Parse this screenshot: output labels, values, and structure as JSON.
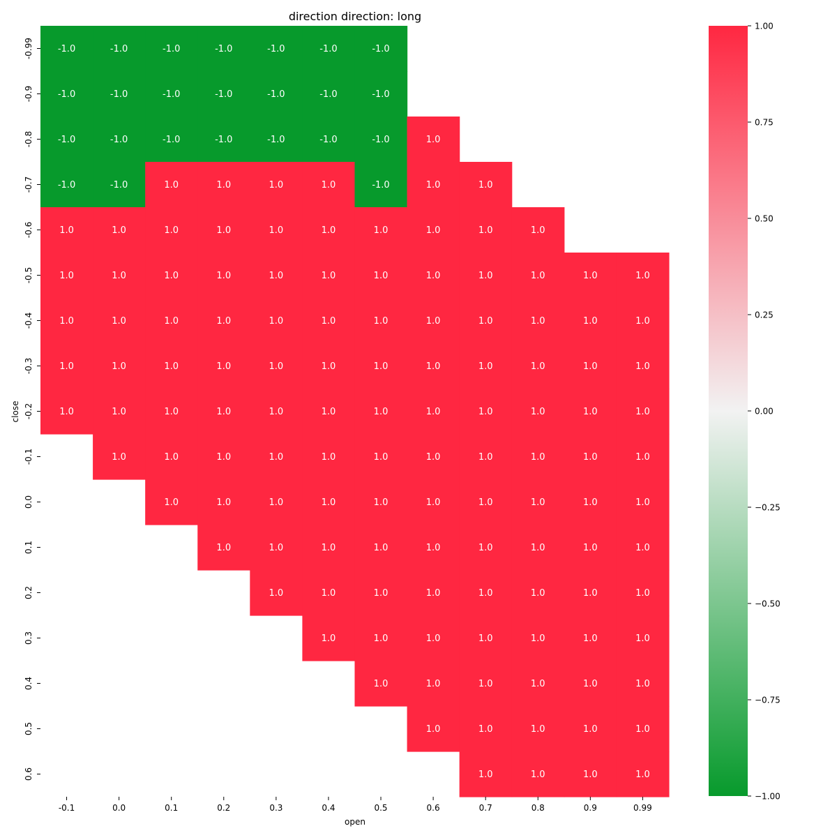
{
  "chart_data": {
    "type": "heatmap",
    "title": "direction  direction: long",
    "xlabel": "open",
    "ylabel": "close",
    "x_categories": [
      "-0.1",
      "0.0",
      "0.1",
      "0.2",
      "0.3",
      "0.4",
      "0.5",
      "0.6",
      "0.7",
      "0.8",
      "0.9",
      "0.99"
    ],
    "y_categories": [
      "-0.99",
      "-0.9",
      "-0.8",
      "-0.7",
      "-0.6",
      "-0.5",
      "-0.4",
      "-0.3",
      "-0.2",
      "-0.1",
      "0.0",
      "0.1",
      "0.2",
      "0.3",
      "0.4",
      "0.5",
      "0.6"
    ],
    "values": [
      [
        -1.0,
        -1.0,
        -1.0,
        -1.0,
        -1.0,
        -1.0,
        -1.0,
        null,
        null,
        null,
        null,
        null
      ],
      [
        -1.0,
        -1.0,
        -1.0,
        -1.0,
        -1.0,
        -1.0,
        -1.0,
        null,
        null,
        null,
        null,
        null
      ],
      [
        -1.0,
        -1.0,
        -1.0,
        -1.0,
        -1.0,
        -1.0,
        -1.0,
        1.0,
        null,
        null,
        null,
        null
      ],
      [
        -1.0,
        -1.0,
        1.0,
        1.0,
        1.0,
        1.0,
        -1.0,
        1.0,
        1.0,
        null,
        null,
        null
      ],
      [
        1.0,
        1.0,
        1.0,
        1.0,
        1.0,
        1.0,
        1.0,
        1.0,
        1.0,
        1.0,
        null,
        null
      ],
      [
        1.0,
        1.0,
        1.0,
        1.0,
        1.0,
        1.0,
        1.0,
        1.0,
        1.0,
        1.0,
        1.0,
        1.0
      ],
      [
        1.0,
        1.0,
        1.0,
        1.0,
        1.0,
        1.0,
        1.0,
        1.0,
        1.0,
        1.0,
        1.0,
        1.0
      ],
      [
        1.0,
        1.0,
        1.0,
        1.0,
        1.0,
        1.0,
        1.0,
        1.0,
        1.0,
        1.0,
        1.0,
        1.0
      ],
      [
        1.0,
        1.0,
        1.0,
        1.0,
        1.0,
        1.0,
        1.0,
        1.0,
        1.0,
        1.0,
        1.0,
        1.0
      ],
      [
        null,
        1.0,
        1.0,
        1.0,
        1.0,
        1.0,
        1.0,
        1.0,
        1.0,
        1.0,
        1.0,
        1.0
      ],
      [
        null,
        null,
        1.0,
        1.0,
        1.0,
        1.0,
        1.0,
        1.0,
        1.0,
        1.0,
        1.0,
        1.0
      ],
      [
        null,
        null,
        null,
        1.0,
        1.0,
        1.0,
        1.0,
        1.0,
        1.0,
        1.0,
        1.0,
        1.0
      ],
      [
        null,
        null,
        null,
        null,
        1.0,
        1.0,
        1.0,
        1.0,
        1.0,
        1.0,
        1.0,
        1.0
      ],
      [
        null,
        null,
        null,
        null,
        null,
        1.0,
        1.0,
        1.0,
        1.0,
        1.0,
        1.0,
        1.0
      ],
      [
        null,
        null,
        null,
        null,
        null,
        null,
        1.0,
        1.0,
        1.0,
        1.0,
        1.0,
        1.0
      ],
      [
        null,
        null,
        null,
        null,
        null,
        null,
        null,
        1.0,
        1.0,
        1.0,
        1.0,
        1.0
      ],
      [
        null,
        null,
        null,
        null,
        null,
        null,
        null,
        null,
        1.0,
        1.0,
        1.0,
        1.0
      ]
    ],
    "colorbar": {
      "range": [
        -1.0,
        1.0
      ],
      "ticks": [
        "1.00",
        "0.75",
        "0.50",
        "0.25",
        "0.00",
        "−0.25",
        "−0.50",
        "−0.75",
        "−1.00"
      ],
      "colors": {
        "min": "#079a2c",
        "mid": "#f2f2f2",
        "max": "#ff2741"
      }
    },
    "annotation_color": "#ffffff"
  }
}
